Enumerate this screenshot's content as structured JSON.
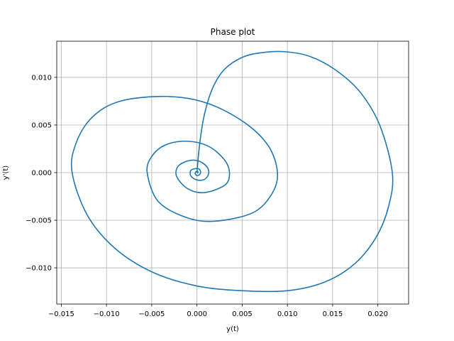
{
  "chart_data": {
    "type": "line",
    "title": "Phase plot",
    "xlabel": "y(t)",
    "ylabel": "y'(t)",
    "xlim": [
      -0.0155,
      0.0234
    ],
    "ylim": [
      -0.0138,
      0.0138
    ],
    "xticks": [
      -0.015,
      -0.01,
      -0.005,
      0.0,
      0.005,
      0.01,
      0.015,
      0.02
    ],
    "xtick_labels": [
      "−0.015",
      "−0.010",
      "−0.005",
      "0.000",
      "0.005",
      "0.010",
      "0.015",
      "0.020"
    ],
    "yticks": [
      -0.01,
      -0.005,
      0.0,
      0.005,
      0.01
    ],
    "ytick_labels": [
      "−0.010",
      "−0.005",
      "0.000",
      "0.005",
      "0.010"
    ],
    "grid": true,
    "series": [
      {
        "color": "#1f77b4",
        "points": [
          [
            0.0,
            0.0
          ],
          [
            0.0003,
            0.003
          ],
          [
            0.0008,
            0.006
          ],
          [
            0.0017,
            0.0088
          ],
          [
            0.003,
            0.0108
          ],
          [
            0.005,
            0.0121
          ],
          [
            0.0072,
            0.0126
          ],
          [
            0.0097,
            0.0127
          ],
          [
            0.0125,
            0.0122
          ],
          [
            0.0153,
            0.0108
          ],
          [
            0.018,
            0.0085
          ],
          [
            0.0202,
            0.005
          ],
          [
            0.0216,
            0.0
          ],
          [
            0.0212,
            -0.0035
          ],
          [
            0.0198,
            -0.0068
          ],
          [
            0.0174,
            -0.0096
          ],
          [
            0.0141,
            -0.0115
          ],
          [
            0.01,
            -0.0124
          ],
          [
            0.005,
            -0.0124
          ],
          [
            0.0,
            -0.0119
          ],
          [
            -0.0048,
            -0.0105
          ],
          [
            -0.009,
            -0.008
          ],
          [
            -0.0121,
            -0.0045
          ],
          [
            -0.0138,
            0.0
          ],
          [
            -0.0134,
            0.003
          ],
          [
            -0.0116,
            0.0058
          ],
          [
            -0.0085,
            0.0075
          ],
          [
            -0.0033,
            0.008
          ],
          [
            0.0011,
            0.0073
          ],
          [
            0.0052,
            0.0053
          ],
          [
            0.0079,
            0.0028
          ],
          [
            0.0089,
            0.0
          ],
          [
            0.0083,
            -0.0022
          ],
          [
            0.0062,
            -0.0042
          ],
          [
            0.002,
            -0.0051
          ],
          [
            -0.0012,
            -0.0047
          ],
          [
            -0.0043,
            -0.003
          ],
          [
            -0.0055,
            0.0
          ],
          [
            -0.005,
            0.0017
          ],
          [
            -0.0035,
            0.0029
          ],
          [
            -0.0012,
            0.0033
          ],
          [
            0.0012,
            0.0028
          ],
          [
            0.003,
            0.0014
          ],
          [
            0.0036,
            0.0
          ],
          [
            0.0031,
            -0.0013
          ],
          [
            0.0008,
            -0.0021
          ],
          [
            -0.001,
            -0.0017
          ],
          [
            -0.0022,
            -0.0005
          ],
          [
            -0.0022,
            0.0005
          ],
          [
            -0.0014,
            0.0011
          ],
          [
            -0.0002,
            0.0013
          ],
          [
            0.0008,
            0.0009
          ],
          [
            0.0013,
            0.0002
          ],
          [
            0.0011,
            -0.0005
          ],
          [
            0.0005,
            -0.0008
          ],
          [
            -0.0002,
            -0.0007
          ],
          [
            -0.0007,
            -0.0003
          ],
          [
            -0.0007,
            0.0002
          ],
          [
            -0.0003,
            0.0004
          ],
          [
            0.0002,
            0.0004
          ],
          [
            0.0004,
            0.0001
          ],
          [
            0.0003,
            -0.0002
          ],
          [
            0.0,
            -0.0003
          ],
          [
            -0.0002,
            -0.0001
          ],
          [
            -0.0001,
            0.0001
          ],
          [
            0.0001,
            0.0001
          ],
          [
            0.0001,
            0.0
          ],
          [
            0.0,
            0.0
          ]
        ]
      }
    ]
  }
}
